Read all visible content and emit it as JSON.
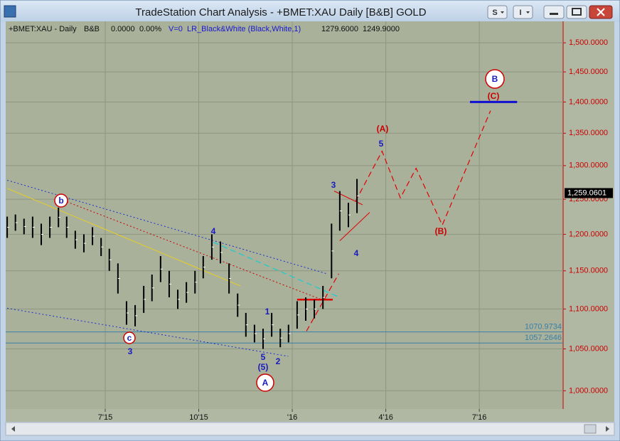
{
  "window": {
    "title": "TradeStation Chart Analysis - +BMET:XAU Daily [B&B] GOLD",
    "buttons": [
      "S",
      "I"
    ]
  },
  "header": {
    "symbol": "+BMET:XAU - Daily",
    "style": "B&B",
    "values": [
      "0.0000",
      "0.00%"
    ],
    "indicator": "V=0  LR_Black&White (Black,White,1)",
    "prices": [
      "1279.6000",
      "1249.9000"
    ]
  },
  "chart_data": {
    "type": "hilo",
    "log": true,
    "grid": true,
    "xlim": [
      2015.234,
      2016.724
    ],
    "xticks": [
      {
        "value": 2015.5,
        "label": "7'15"
      },
      {
        "value": 2015.75,
        "label": "10'15"
      },
      {
        "value": 2016.0,
        "label": "'16"
      },
      {
        "value": 2016.25,
        "label": "4'16"
      },
      {
        "value": 2016.5,
        "label": "7'16"
      }
    ],
    "ylim": [
      979,
      1538
    ],
    "yticks": [
      {
        "value": 1000,
        "label": "1,000.0000"
      },
      {
        "value": 1050,
        "label": "1,050.0000"
      },
      {
        "value": 1100,
        "label": "1,100.0000"
      },
      {
        "value": 1150,
        "label": "1,150.0000"
      },
      {
        "value": 1200,
        "label": "1,200.0000"
      },
      {
        "value": 1250,
        "label": "1,250.0000"
      },
      {
        "value": 1300,
        "label": "1,300.0000"
      },
      {
        "value": 1350,
        "label": "1,350.0000"
      },
      {
        "value": 1400,
        "label": "1,400.0000"
      },
      {
        "value": 1450,
        "label": "1,450.0000"
      },
      {
        "value": 1500,
        "label": "1,500.0000"
      }
    ],
    "bar_color": "#000000",
    "x": [
      2015.238,
      2015.26,
      2015.283,
      2015.306,
      2015.329,
      2015.352,
      2015.375,
      2015.397,
      2015.42,
      2015.443,
      2015.466,
      2015.489,
      2015.511,
      2015.534,
      2015.557,
      2015.58,
      2015.603,
      2015.625,
      2015.648,
      2015.671,
      2015.694,
      2015.717,
      2015.74,
      2015.762,
      2015.785,
      2015.808,
      2015.831,
      2015.854,
      2015.876,
      2015.899,
      2015.922,
      2015.945,
      2015.968,
      2015.99,
      2016.013,
      2016.036,
      2016.059,
      2016.082,
      2016.105,
      2016.127,
      2016.15,
      2016.173
    ],
    "high": [
      1225,
      1228,
      1222,
      1225,
      1215,
      1225,
      1238,
      1225,
      1205,
      1200,
      1210,
      1195,
      1180,
      1160,
      1110,
      1105,
      1130,
      1145,
      1170,
      1150,
      1125,
      1135,
      1150,
      1170,
      1200,
      1190,
      1160,
      1120,
      1095,
      1080,
      1075,
      1095,
      1075,
      1080,
      1110,
      1115,
      1112,
      1130,
      1215,
      1262,
      1245,
      1280
    ],
    "low": [
      1195,
      1205,
      1200,
      1195,
      1185,
      1195,
      1210,
      1195,
      1180,
      1175,
      1185,
      1170,
      1150,
      1120,
      1080,
      1078,
      1095,
      1110,
      1135,
      1115,
      1100,
      1108,
      1120,
      1140,
      1165,
      1160,
      1120,
      1090,
      1065,
      1058,
      1050,
      1065,
      1052,
      1058,
      1075,
      1085,
      1088,
      1100,
      1140,
      1205,
      1210,
      1230
    ],
    "last_price": {
      "value": 1259.0601,
      "label": "1,259.0601"
    },
    "levels": [
      1070.9734,
      1057.2646
    ],
    "level_color": "#3a7fa8",
    "lines": [
      {
        "color": "#1a2fd0",
        "dash": "dotted",
        "width": 1,
        "x": [
          2015.238,
          2016.093
        ],
        "y": [
          1278,
          1146
        ]
      },
      {
        "color": "#1a2fd0",
        "dash": "dotted",
        "width": 1,
        "x": [
          2015.238,
          2015.989
        ],
        "y": [
          1101,
          1041
        ]
      },
      {
        "color": "#e8d020",
        "dash": "solid",
        "width": 1,
        "x": [
          2015.238,
          2015.861
        ],
        "y": [
          1266,
          1130
        ]
      },
      {
        "color": "#cc0000",
        "dash": "dotted",
        "width": 1,
        "x": [
          2015.38,
          2016.074
        ],
        "y": [
          1250,
          1113
        ]
      },
      {
        "color": "#30c8c8",
        "dash": "dashed",
        "width": 1.5,
        "x": [
          2015.789,
          2016.127
        ],
        "y": [
          1189,
          1115
        ]
      },
      {
        "color": "#e00000",
        "dash": "solid",
        "width": 2.5,
        "x": [
          2016.013,
          2016.108
        ],
        "y": [
          1112,
          1112
        ]
      },
      {
        "color": "#e00000",
        "dash": "dashed",
        "width": 1.2,
        "x": [
          2016.038,
          2016.124
        ],
        "y": [
          1072,
          1146
        ]
      },
      {
        "color": "#e00000",
        "dash": "solid",
        "width": 1,
        "x": [
          2016.112,
          2016.188
        ],
        "y": [
          1262,
          1242
        ]
      },
      {
        "color": "#e00000",
        "dash": "solid",
        "width": 1,
        "x": [
          2016.127,
          2016.207
        ],
        "y": [
          1191,
          1231
        ]
      },
      {
        "color": "#e00000",
        "dash": "dashed",
        "width": 1.2,
        "x": [
          2016.169,
          2016.24,
          2016.289,
          2016.331,
          2016.401,
          2016.53
        ],
        "y": [
          1247,
          1322,
          1252,
          1296,
          1213,
          1386
        ]
      },
      {
        "color": "#1010d0",
        "dash": "solid",
        "width": 3,
        "x": [
          2016.475,
          2016.601
        ],
        "y": [
          1400,
          1400
        ]
      }
    ],
    "annotations": [
      {
        "text": "b",
        "color": "#1a1ac0",
        "circled": true
      },
      {
        "text": "c",
        "color": "#1a1ac0",
        "circled": true
      },
      {
        "text": "3",
        "color": "#1a1ac0",
        "circled": false
      },
      {
        "text": "4",
        "color": "#1a1ac0",
        "circled": false
      },
      {
        "text": "1",
        "color": "#1a1ac0",
        "circled": false
      },
      {
        "text": "5",
        "color": "#1a1ac0",
        "circled": false
      },
      {
        "text": "(5)",
        "color": "#1a1ac0",
        "circled": false
      },
      {
        "text": "2",
        "color": "#1a1ac0",
        "circled": false
      },
      {
        "text": "A",
        "color": "#1a1ac0",
        "circled": true
      },
      {
        "text": "3",
        "color": "#1a1ac0",
        "circled": false
      },
      {
        "text": "4",
        "color": "#1a1ac0",
        "circled": false
      },
      {
        "text": "5",
        "color": "#1a1ac0",
        "circled": false
      },
      {
        "text": "(A)",
        "color": "#cc0000",
        "circled": false
      },
      {
        "text": "(B)",
        "color": "#cc0000",
        "circled": false
      },
      {
        "text": "(C)",
        "color": "#cc0000",
        "circled": false
      },
      {
        "text": "B",
        "color": "#1a1ac0",
        "circled": true
      }
    ]
  }
}
